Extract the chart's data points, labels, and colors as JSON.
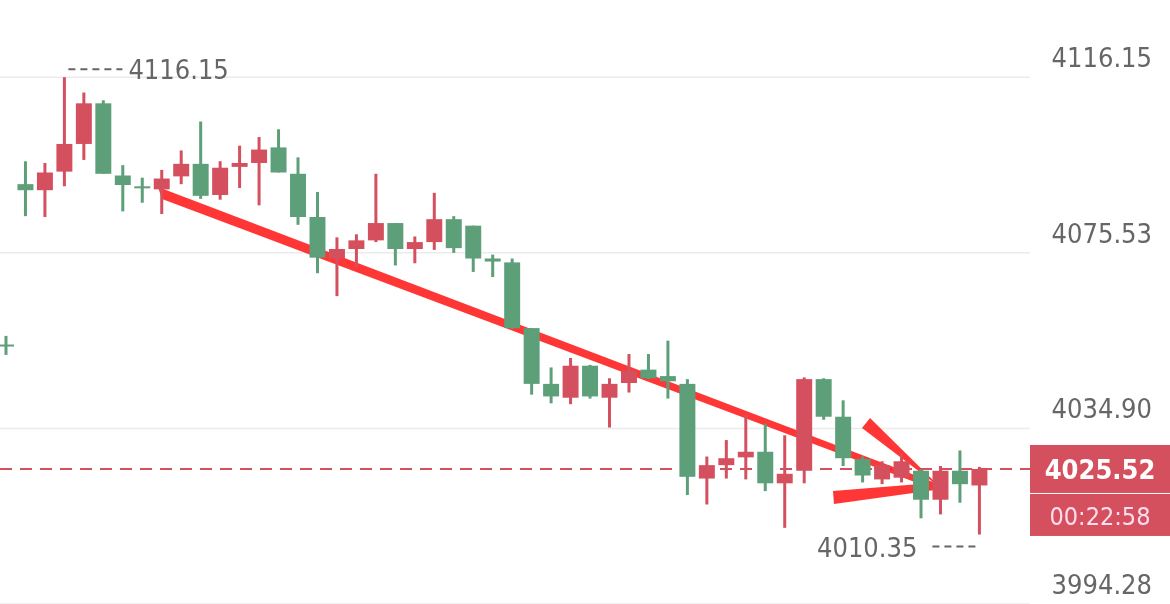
{
  "chart_data": {
    "type": "candlestick",
    "categories": [
      null,
      null,
      null,
      null,
      null,
      null,
      null,
      null,
      null,
      null,
      null,
      null,
      null,
      null,
      null,
      null,
      null,
      null,
      null,
      null,
      null,
      null,
      null,
      null,
      null,
      null,
      null,
      null,
      null,
      null,
      null,
      null,
      null,
      null,
      null,
      null,
      null,
      null,
      null,
      null,
      null,
      null,
      null,
      null,
      null,
      null,
      null,
      null,
      null,
      null,
      null
    ],
    "ohlc": [
      [
        4054.3,
        4056.3,
        4051.9,
        4053.9
      ],
      [
        4091.4,
        4096.7,
        4084.0,
        4090.0
      ],
      [
        4090.0,
        4096.3,
        4083.8,
        4094.1
      ],
      [
        4094.3,
        4116.15,
        4090.9,
        4100.7
      ],
      [
        4100.7,
        4112.6,
        4097.0,
        4110.1
      ],
      [
        4110.1,
        4110.8,
        4093.8,
        4093.8
      ],
      [
        4093.4,
        4095.8,
        4085.1,
        4091.2
      ],
      [
        4090.9,
        4092.9,
        4087.1,
        4090.5
      ],
      [
        4090.2,
        4094.7,
        4084.5,
        4092.7
      ],
      [
        4093.2,
        4099.2,
        4091.4,
        4096.1
      ],
      [
        4096.1,
        4105.9,
        4088.0,
        4088.7
      ],
      [
        4088.9,
        4096.7,
        4087.8,
        4095.2
      ],
      [
        4095.4,
        4100.3,
        4090.5,
        4096.3
      ],
      [
        4096.3,
        4102.3,
        4086.5,
        4099.4
      ],
      [
        4099.9,
        4104.1,
        4094.1,
        4094.1
      ],
      [
        4093.8,
        4097.6,
        4082.0,
        4083.8
      ],
      [
        4083.8,
        4089.6,
        4070.8,
        4074.4
      ],
      [
        4074.2,
        4079.1,
        4065.5,
        4076.4
      ],
      [
        4076.4,
        4079.8,
        4072.2,
        4078.4
      ],
      [
        4078.4,
        4093.8,
        4078.0,
        4082.4
      ],
      [
        4082.4,
        4082.4,
        4072.6,
        4076.4
      ],
      [
        4076.4,
        4079.3,
        4073.1,
        4078.0
      ],
      [
        4078.0,
        4089.4,
        4076.2,
        4083.3
      ],
      [
        4083.3,
        4084.0,
        4075.5,
        4076.6
      ],
      [
        4081.8,
        4081.8,
        4071.1,
        4074.2
      ],
      [
        4074.2,
        4075.1,
        4069.9,
        4073.5
      ],
      [
        4073.3,
        4074.2,
        4057.9,
        4058.1
      ],
      [
        4058.1,
        4058.1,
        4042.7,
        4045.2
      ],
      [
        4045.2,
        4049.0,
        4040.7,
        4042.3
      ],
      [
        4042.0,
        4051.2,
        4040.5,
        4049.4
      ],
      [
        4049.4,
        4049.6,
        4041.8,
        4042.3
      ],
      [
        4042.0,
        4046.5,
        4035.1,
        4045.2
      ],
      [
        4045.4,
        4052.1,
        4043.2,
        4048.3
      ],
      [
        4048.5,
        4052.1,
        4046.3,
        4046.5
      ],
      [
        4047.0,
        4055.2,
        4041.8,
        4045.8
      ],
      [
        4045.2,
        4046.3,
        4019.5,
        4023.7
      ],
      [
        4023.3,
        4028.4,
        4017.3,
        4026.4
      ],
      [
        4026.4,
        4032.2,
        4023.3,
        4028.0
      ],
      [
        4028.2,
        4038.0,
        4023.1,
        4029.5
      ],
      [
        4029.5,
        4036.0,
        4020.4,
        4022.2
      ],
      [
        4022.2,
        4033.3,
        4011.9,
        4024.4
      ],
      [
        4025.1,
        4046.7,
        4022.2,
        4046.3
      ],
      [
        4046.3,
        4046.5,
        4036.9,
        4037.6
      ],
      [
        4037.6,
        4041.4,
        4026.2,
        4028.0
      ],
      [
        4027.8,
        4028.4,
        4022.4,
        4024.0
      ],
      [
        4023.1,
        4027.3,
        4022.0,
        4026.4
      ],
      [
        4023.5,
        4029.1,
        4022.4,
        4027.3
      ],
      [
        4025.1,
        4025.5,
        4014.1,
        4018.4
      ],
      [
        4018.4,
        4026.2,
        4015.0,
        4025.1
      ],
      [
        4025.1,
        4029.8,
        4017.7,
        4022.0
      ],
      [
        4021.7,
        4026.0,
        4010.35,
        4025.52
      ]
    ],
    "colors": [
      "#5d9f79",
      "#5d9f79",
      "#d4505e",
      "#d4505e",
      "#d4505e",
      "#5d9f79",
      "#5d9f79",
      "#5d9f79",
      "#d4505e",
      "#d4505e",
      "#5d9f79",
      "#d4505e",
      "#d4505e",
      "#d4505e",
      "#5d9f79",
      "#5d9f79",
      "#5d9f79",
      "#d4505e",
      "#d4505e",
      "#d4505e",
      "#5d9f79",
      "#d4505e",
      "#d4505e",
      "#5d9f79",
      "#5d9f79",
      "#5d9f79",
      "#5d9f79",
      "#5d9f79",
      "#5d9f79",
      "#d4505e",
      "#5d9f79",
      "#d4505e",
      "#d4505e",
      "#5d9f79",
      "#5d9f79",
      "#5d9f79",
      "#d4505e",
      "#d4505e",
      "#d4505e",
      "#5d9f79",
      "#d4505e",
      "#d4505e",
      "#5d9f79",
      "#5d9f79",
      "#5d9f79",
      "#d4505e",
      "#d4505e",
      "#5d9f79",
      "#d4505e",
      "#5d9f79",
      "#d4505e"
    ],
    "ylim": [
      3994.28,
      4134
    ],
    "yticks": [
      {
        "value": 3994.28,
        "label": "3994.28"
      },
      {
        "value": 4034.9,
        "label": "4034.90"
      },
      {
        "value": 4075.53,
        "label": "4075.53"
      },
      {
        "value": 4116.15,
        "label": "4116.15"
      }
    ],
    "grid": "y",
    "tick_labels": "y",
    "ref_lines": [
      {
        "axis": "y",
        "value": 4025.52,
        "label": "4025.52",
        "color": "#d4505e",
        "line_style": "dashed"
      }
    ],
    "annotations": [
      "4116.15",
      "4010.35",
      "00:22:58"
    ]
  }
}
